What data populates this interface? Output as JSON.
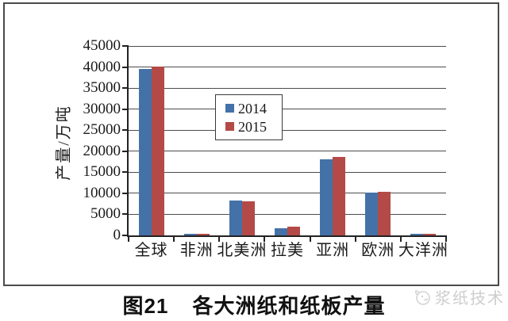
{
  "figure": {
    "caption_prefix": "图21",
    "caption_title": "各大洲纸和纸板产量",
    "watermark": "浆纸技术"
  },
  "chart_data": {
    "type": "bar",
    "title": "各大洲纸和纸板产量",
    "categories": [
      "全球",
      "非洲",
      "北美洲",
      "拉美",
      "亚洲",
      "欧洲",
      "大洋洲"
    ],
    "series": [
      {
        "name": "2014",
        "color": "#4472a8",
        "values": [
          39600,
          400,
          8300,
          1700,
          18100,
          10200,
          350
        ]
      },
      {
        "name": "2015",
        "color": "#b34a47",
        "values": [
          40100,
          400,
          8100,
          2000,
          18600,
          10300,
          350
        ]
      }
    ],
    "xlabel": "",
    "ylabel": "产量/万吨",
    "ylim": [
      0,
      45000
    ],
    "yticks": [
      0,
      5000,
      10000,
      15000,
      20000,
      25000,
      30000,
      35000,
      40000,
      45000
    ],
    "grid": true,
    "legend_position": "upper-right-inside"
  }
}
